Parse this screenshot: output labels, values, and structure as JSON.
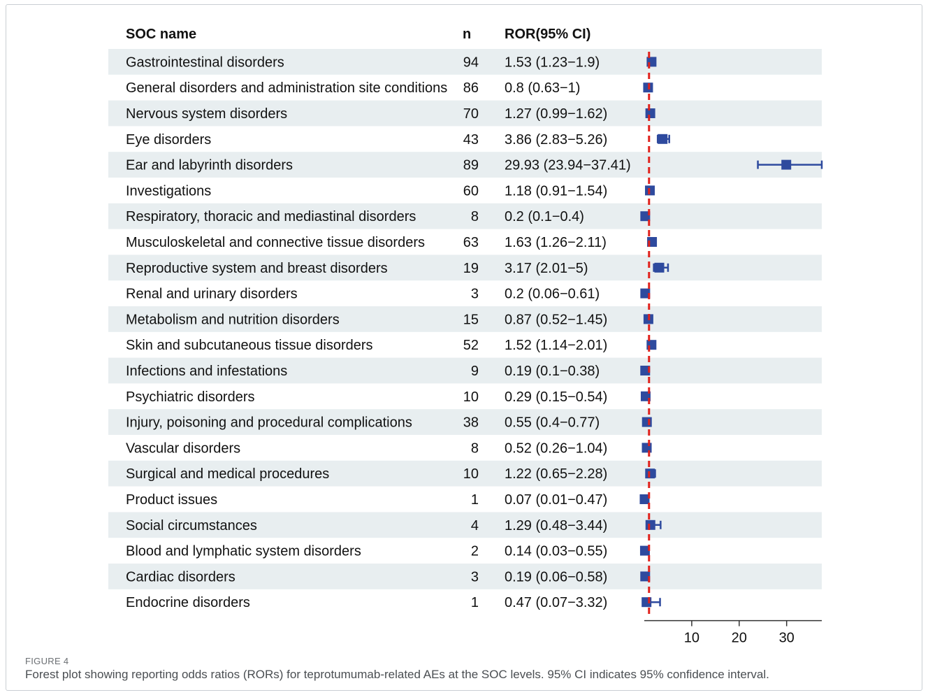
{
  "columns": {
    "name": "SOC name",
    "n": "n",
    "ror": "ROR(95% CI)"
  },
  "caption": {
    "label": "FIGURE 4",
    "text": "Forest plot showing reporting odds ratios (RORs) for teprotumumab-related AEs at the SOC levels. 95% CI indicates 95% confidence interval."
  },
  "colors": {
    "stripe": "#e8eef0",
    "marker": "#2e4a9e",
    "reference": "#e0201b",
    "axis": "#333333",
    "text": "#111111"
  },
  "chart_data": {
    "type": "forest",
    "reference_value": 1,
    "xlim": [
      0,
      37.41
    ],
    "xticks": [
      10,
      20,
      30
    ],
    "rows": [
      {
        "name": "Gastrointestinal disorders",
        "n": 94,
        "ror_text": "1.53 (1.23−1.9)",
        "ror": 1.53,
        "lo": 1.23,
        "hi": 1.9
      },
      {
        "name": "General disorders and administration site conditions",
        "n": 86,
        "ror_text": "0.8 (0.63−1)",
        "ror": 0.8,
        "lo": 0.63,
        "hi": 1
      },
      {
        "name": "Nervous system disorders",
        "n": 70,
        "ror_text": "1.27 (0.99−1.62)",
        "ror": 1.27,
        "lo": 0.99,
        "hi": 1.62
      },
      {
        "name": "Eye disorders",
        "n": 43,
        "ror_text": "3.86 (2.83−5.26)",
        "ror": 3.86,
        "lo": 2.83,
        "hi": 5.26
      },
      {
        "name": "Ear and labyrinth disorders",
        "n": 89,
        "ror_text": "29.93 (23.94−37.41)",
        "ror": 29.93,
        "lo": 23.94,
        "hi": 37.41
      },
      {
        "name": "Investigations",
        "n": 60,
        "ror_text": "1.18 (0.91−1.54)",
        "ror": 1.18,
        "lo": 0.91,
        "hi": 1.54
      },
      {
        "name": "Respiratory, thoracic and mediastinal disorders",
        "n": 8,
        "ror_text": "0.2 (0.1−0.4)",
        "ror": 0.2,
        "lo": 0.1,
        "hi": 0.4
      },
      {
        "name": "Musculoskeletal and connective tissue disorders",
        "n": 63,
        "ror_text": "1.63 (1.26−2.11)",
        "ror": 1.63,
        "lo": 1.26,
        "hi": 2.11
      },
      {
        "name": "Reproductive system and breast disorders",
        "n": 19,
        "ror_text": "3.17 (2.01−5)",
        "ror": 3.17,
        "lo": 2.01,
        "hi": 5
      },
      {
        "name": "Renal and urinary disorders",
        "n": 3,
        "ror_text": "0.2 (0.06−0.61)",
        "ror": 0.2,
        "lo": 0.06,
        "hi": 0.61
      },
      {
        "name": "Metabolism and nutrition disorders",
        "n": 15,
        "ror_text": "0.87 (0.52−1.45)",
        "ror": 0.87,
        "lo": 0.52,
        "hi": 1.45
      },
      {
        "name": "Skin and subcutaneous tissue disorders",
        "n": 52,
        "ror_text": "1.52 (1.14−2.01)",
        "ror": 1.52,
        "lo": 1.14,
        "hi": 2.01
      },
      {
        "name": "Infections and infestations",
        "n": 9,
        "ror_text": "0.19 (0.1−0.38)",
        "ror": 0.19,
        "lo": 0.1,
        "hi": 0.38
      },
      {
        "name": "Psychiatric disorders",
        "n": 10,
        "ror_text": "0.29 (0.15−0.54)",
        "ror": 0.29,
        "lo": 0.15,
        "hi": 0.54
      },
      {
        "name": "Injury, poisoning and procedural complications",
        "n": 38,
        "ror_text": "0.55 (0.4−0.77)",
        "ror": 0.55,
        "lo": 0.4,
        "hi": 0.77
      },
      {
        "name": "Vascular disorders",
        "n": 8,
        "ror_text": "0.52 (0.26−1.04)",
        "ror": 0.52,
        "lo": 0.26,
        "hi": 1.04
      },
      {
        "name": "Surgical and medical procedures",
        "n": 10,
        "ror_text": "1.22 (0.65−2.28)",
        "ror": 1.22,
        "lo": 0.65,
        "hi": 2.28
      },
      {
        "name": "Product issues",
        "n": 1,
        "ror_text": "0.07 (0.01−0.47)",
        "ror": 0.07,
        "lo": 0.01,
        "hi": 0.47
      },
      {
        "name": "Social circumstances",
        "n": 4,
        "ror_text": "1.29 (0.48−3.44)",
        "ror": 1.29,
        "lo": 0.48,
        "hi": 3.44
      },
      {
        "name": "Blood and lymphatic system disorders",
        "n": 2,
        "ror_text": "0.14 (0.03−0.55)",
        "ror": 0.14,
        "lo": 0.03,
        "hi": 0.55
      },
      {
        "name": "Cardiac disorders",
        "n": 3,
        "ror_text": "0.19 (0.06−0.58)",
        "ror": 0.19,
        "lo": 0.06,
        "hi": 0.58
      },
      {
        "name": "Endocrine disorders",
        "n": 1,
        "ror_text": "0.47 (0.07−3.32)",
        "ror": 0.47,
        "lo": 0.07,
        "hi": 3.32
      }
    ]
  }
}
